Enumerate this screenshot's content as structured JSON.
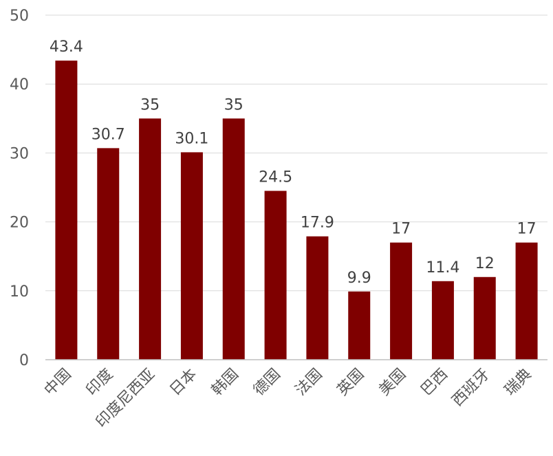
{
  "chart_data": {
    "type": "bar",
    "categories": [
      "中国",
      "印度",
      "印度尼西亚",
      "日本",
      "韩国",
      "德国",
      "法国",
      "英国",
      "美国",
      "巴西",
      "西班牙",
      "瑞典"
    ],
    "values": [
      43.4,
      30.7,
      35,
      30.1,
      35,
      24.5,
      17.9,
      9.9,
      17,
      11.4,
      12,
      17
    ],
    "value_labels": [
      "43.4",
      "30.7",
      "35",
      "30.1",
      "35",
      "24.5",
      "17.9",
      "9.9",
      "17",
      "11.4",
      "12",
      "17"
    ],
    "title": "",
    "xlabel": "",
    "ylabel": "",
    "ylim": [
      0,
      50
    ],
    "yticks": [
      0,
      10,
      20,
      30,
      40,
      50
    ],
    "grid": true,
    "legend": "none",
    "bar_color": "#7f0000"
  }
}
